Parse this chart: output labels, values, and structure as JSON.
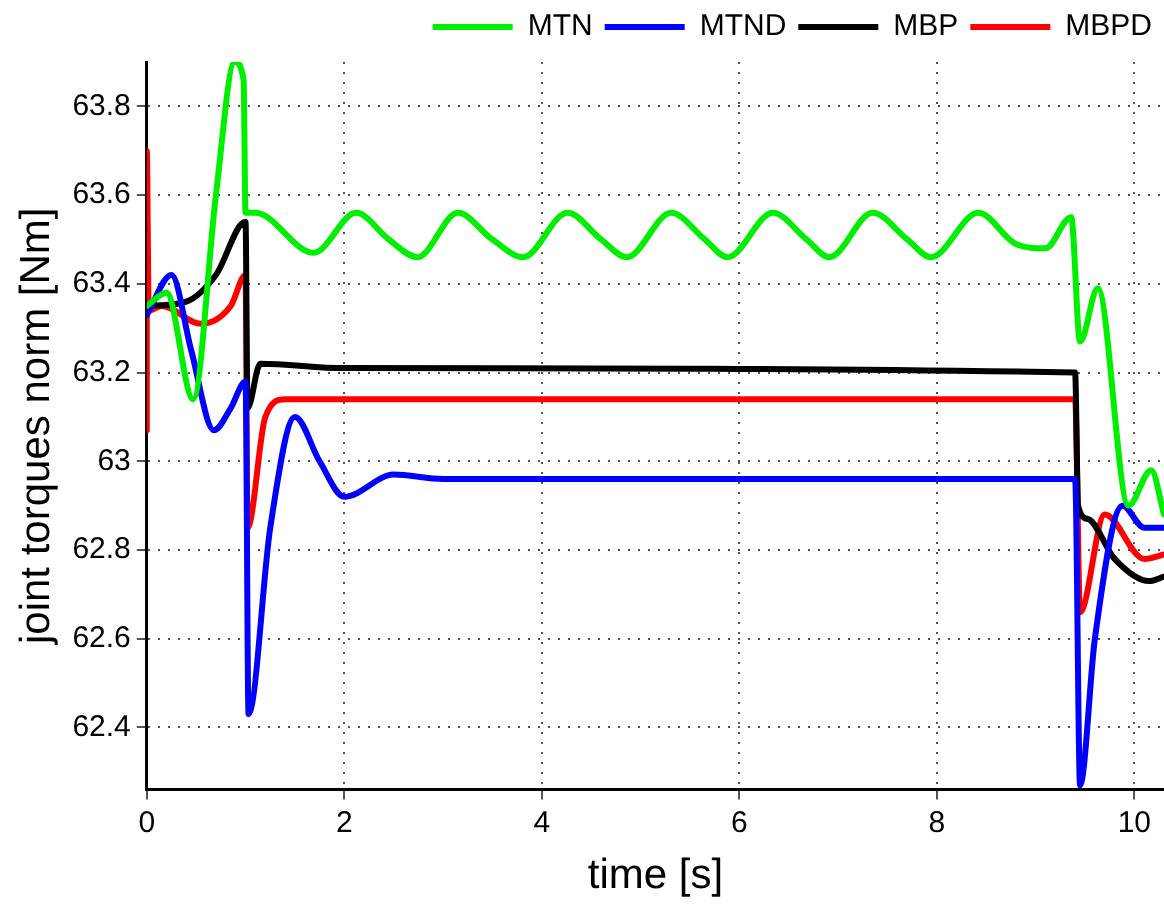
{
  "chart_data": {
    "type": "line",
    "xlabel": "time [s]",
    "ylabel": "joint torques norm [Nm]",
    "xlim": [
      0,
      10.3
    ],
    "ylim": [
      62.26,
      63.9
    ],
    "xticks": [
      0,
      2,
      4,
      6,
      8,
      10
    ],
    "yticks": [
      62.4,
      62.6,
      62.8,
      63,
      63.2,
      63.4,
      63.6,
      63.8
    ],
    "grid": true,
    "legend": "top",
    "marker": "none",
    "line_style": "solid",
    "series": [
      {
        "name": "MTN",
        "color": "#00ee00",
        "x": [
          0,
          0.2,
          0.47,
          0.7,
          0.89,
          0.98,
          1.0,
          1.1,
          1.69,
          2.12,
          2.45,
          2.74,
          3.15,
          3.5,
          3.81,
          4.26,
          4.6,
          4.86,
          5.31,
          5.65,
          5.88,
          6.34,
          6.68,
          6.91,
          7.35,
          7.7,
          7.94,
          8.42,
          8.8,
          9.1,
          9.36,
          9.45,
          9.63,
          9.94,
          10.17,
          10.3
        ],
        "values": [
          63.35,
          63.38,
          63.14,
          63.6,
          63.9,
          63.86,
          63.56,
          63.56,
          63.47,
          63.56,
          63.5,
          63.46,
          63.56,
          63.5,
          63.46,
          63.56,
          63.5,
          63.46,
          63.56,
          63.5,
          63.46,
          63.56,
          63.5,
          63.46,
          63.56,
          63.5,
          63.46,
          63.56,
          63.49,
          63.48,
          63.55,
          63.27,
          63.39,
          62.9,
          62.98,
          62.88
        ]
      },
      {
        "name": "MTND",
        "color": "#0000ff",
        "x": [
          0,
          0.25,
          0.45,
          0.68,
          0.85,
          1.0,
          1.03,
          1.25,
          1.5,
          1.75,
          2.0,
          2.5,
          3.0,
          9.4,
          9.45,
          9.6,
          9.88,
          10.1,
          10.3
        ],
        "values": [
          63.33,
          63.42,
          63.25,
          63.07,
          63.12,
          63.18,
          62.43,
          62.85,
          63.1,
          63.0,
          62.92,
          62.97,
          62.96,
          62.96,
          62.27,
          62.6,
          62.9,
          62.85,
          62.85
        ]
      },
      {
        "name": "MBP",
        "color": "#000000",
        "x": [
          0,
          0.4,
          0.7,
          1.0,
          1.02,
          1.15,
          2.0,
          9.4,
          9.43,
          9.53,
          9.8,
          10.15,
          10.3
        ],
        "values": [
          63.35,
          63.36,
          63.42,
          63.54,
          63.12,
          63.22,
          63.21,
          63.2,
          62.9,
          62.87,
          62.78,
          62.73,
          62.74
        ]
      },
      {
        "name": "MBPD",
        "color": "#ff0000",
        "x": [
          0,
          0,
          0.02,
          0.15,
          0.55,
          0.85,
          1.0,
          1.02,
          1.2,
          1.4,
          2.0,
          9.4,
          9.45,
          9.7,
          10.1,
          10.3
        ],
        "values": [
          63.07,
          63.7,
          63.34,
          63.35,
          63.31,
          63.35,
          63.42,
          62.85,
          63.1,
          63.14,
          63.14,
          63.14,
          62.66,
          62.88,
          62.78,
          62.79
        ]
      }
    ]
  }
}
